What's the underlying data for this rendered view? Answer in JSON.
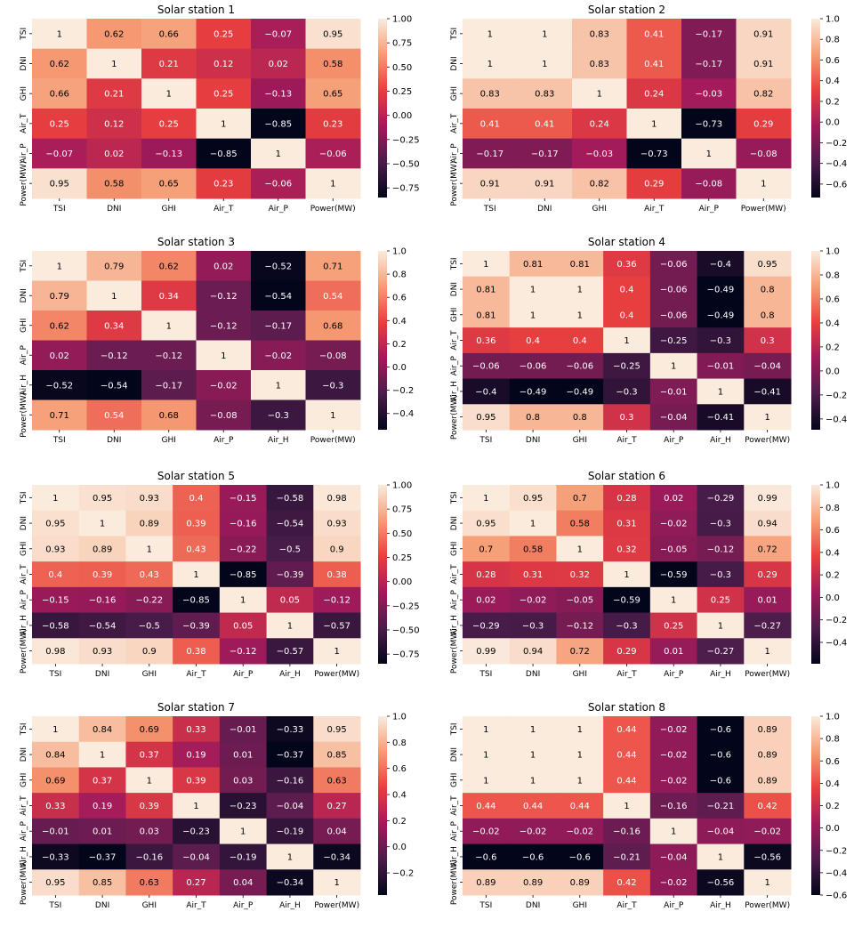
{
  "figure": {
    "colormap": "rocket",
    "colormap_stops": [
      "#03051a",
      "#4c1d4b",
      "#a11a5b",
      "#e83f3f",
      "#f69c73",
      "#faebdd"
    ]
  },
  "chart_data": [
    {
      "type": "heatmap",
      "title": "Solar station 1",
      "labels": [
        "TSI",
        "DNI",
        "GHI",
        "Air_T",
        "Air_P",
        "Power(MW)"
      ],
      "values": [
        [
          1,
          0.62,
          0.66,
          0.25,
          -0.07,
          0.95
        ],
        [
          0.62,
          1,
          0.21,
          0.12,
          0.02,
          0.58
        ],
        [
          0.66,
          0.21,
          1,
          0.25,
          -0.13,
          0.65
        ],
        [
          0.25,
          0.12,
          0.25,
          1,
          -0.85,
          0.23
        ],
        [
          -0.07,
          0.02,
          -0.13,
          -0.85,
          1,
          -0.06
        ],
        [
          0.95,
          0.58,
          0.65,
          0.23,
          -0.06,
          1
        ]
      ],
      "vmin": -0.85,
      "vmax": 1,
      "colorbar_ticks": [
        "1.00",
        "0.75",
        "0.50",
        "0.25",
        "0.00",
        "−0.25",
        "−0.50",
        "−0.75"
      ]
    },
    {
      "type": "heatmap",
      "title": "Solar station 2",
      "labels": [
        "TSI",
        "DNI",
        "GHI",
        "Air_T",
        "Air_P",
        "Power(MW)"
      ],
      "values": [
        [
          1,
          1,
          0.83,
          0.41,
          -0.17,
          0.91
        ],
        [
          1,
          1,
          0.83,
          0.41,
          -0.17,
          0.91
        ],
        [
          0.83,
          0.83,
          1,
          0.24,
          -0.03,
          0.82
        ],
        [
          0.41,
          0.41,
          0.24,
          1,
          -0.73,
          0.29
        ],
        [
          -0.17,
          -0.17,
          -0.03,
          -0.73,
          1,
          -0.08
        ],
        [
          0.91,
          0.91,
          0.82,
          0.29,
          -0.08,
          1
        ]
      ],
      "vmin": -0.73,
      "vmax": 1,
      "colorbar_ticks": [
        "1.0",
        "0.8",
        "0.6",
        "0.4",
        "0.2",
        "0.0",
        "−0.2",
        "−0.4",
        "−0.6"
      ]
    },
    {
      "type": "heatmap",
      "title": "Solar station 3",
      "labels": [
        "TSI",
        "DNI",
        "GHI",
        "Air_P",
        "Air_H",
        "Power(MW)"
      ],
      "values": [
        [
          1,
          0.79,
          0.62,
          0.02,
          -0.52,
          0.71
        ],
        [
          0.79,
          1,
          0.34,
          -0.12,
          -0.54,
          0.54
        ],
        [
          0.62,
          0.34,
          1,
          -0.12,
          -0.17,
          0.68
        ],
        [
          0.02,
          -0.12,
          -0.12,
          1,
          -0.02,
          -0.08
        ],
        [
          -0.52,
          -0.54,
          -0.17,
          -0.02,
          1,
          -0.3
        ],
        [
          0.71,
          0.54,
          0.68,
          -0.08,
          -0.3,
          1
        ]
      ],
      "vmin": -0.54,
      "vmax": 1,
      "colorbar_ticks": [
        "1.0",
        "0.8",
        "0.6",
        "0.4",
        "0.2",
        "0.0",
        "−0.2",
        "−0.4"
      ]
    },
    {
      "type": "heatmap",
      "title": "Solar station 4",
      "labels": [
        "TSI",
        "DNI",
        "GHI",
        "Air_T",
        "Air_P",
        "Air_H",
        "Power(MW)"
      ],
      "values": [
        [
          1,
          0.81,
          0.81,
          0.36,
          -0.06,
          -0.4,
          0.95
        ],
        [
          0.81,
          1,
          1,
          0.4,
          -0.06,
          -0.49,
          0.8
        ],
        [
          0.81,
          1,
          1,
          0.4,
          -0.06,
          -0.49,
          0.8
        ],
        [
          0.36,
          0.4,
          0.4,
          1,
          -0.25,
          -0.3,
          0.3
        ],
        [
          -0.06,
          -0.06,
          -0.06,
          -0.25,
          1,
          -0.01,
          -0.04
        ],
        [
          -0.4,
          -0.49,
          -0.49,
          -0.3,
          -0.01,
          1,
          -0.41
        ],
        [
          0.95,
          0.8,
          0.8,
          0.3,
          -0.04,
          -0.41,
          1
        ]
      ],
      "vmin": -0.49,
      "vmax": 1,
      "colorbar_ticks": [
        "1.0",
        "0.8",
        "0.6",
        "0.4",
        "0.2",
        "0.0",
        "−0.2",
        "−0.4"
      ]
    },
    {
      "type": "heatmap",
      "title": "Solar station 5",
      "labels": [
        "TSI",
        "DNI",
        "GHI",
        "Air_T",
        "Air_P",
        "Air_H",
        "Power(MW)"
      ],
      "values": [
        [
          1,
          0.95,
          0.93,
          0.4,
          -0.15,
          -0.58,
          0.98
        ],
        [
          0.95,
          1,
          0.89,
          0.39,
          -0.16,
          -0.54,
          0.93
        ],
        [
          0.93,
          0.89,
          1,
          0.43,
          -0.22,
          -0.5,
          0.9
        ],
        [
          0.4,
          0.39,
          0.43,
          1,
          -0.85,
          -0.39,
          0.38
        ],
        [
          -0.15,
          -0.16,
          -0.22,
          -0.85,
          1,
          0.05,
          -0.12
        ],
        [
          -0.58,
          -0.54,
          -0.5,
          -0.39,
          0.05,
          1,
          -0.57
        ],
        [
          0.98,
          0.93,
          0.9,
          0.38,
          -0.12,
          -0.57,
          1
        ]
      ],
      "vmin": -0.85,
      "vmax": 1,
      "colorbar_ticks": [
        "1.00",
        "0.75",
        "0.50",
        "0.25",
        "0.00",
        "−0.25",
        "−0.50",
        "−0.75"
      ]
    },
    {
      "type": "heatmap",
      "title": "Solar station 6",
      "labels": [
        "TSI",
        "DNI",
        "GHI",
        "Air_T",
        "Air_P",
        "Air_H",
        "Power(MW)"
      ],
      "values": [
        [
          1,
          0.95,
          0.7,
          0.28,
          0.02,
          -0.29,
          0.99
        ],
        [
          0.95,
          1,
          0.58,
          0.31,
          -0.02,
          -0.3,
          0.94
        ],
        [
          0.7,
          0.58,
          1,
          0.32,
          -0.05,
          -0.12,
          0.72
        ],
        [
          0.28,
          0.31,
          0.32,
          1,
          -0.59,
          -0.3,
          0.29
        ],
        [
          0.02,
          -0.02,
          -0.05,
          -0.59,
          1,
          0.25,
          0.01
        ],
        [
          -0.29,
          -0.3,
          -0.12,
          -0.3,
          0.25,
          1,
          -0.27
        ],
        [
          0.99,
          0.94,
          0.72,
          0.29,
          0.01,
          -0.27,
          1
        ]
      ],
      "vmin": -0.59,
      "vmax": 1,
      "colorbar_ticks": [
        "1.0",
        "0.8",
        "0.6",
        "0.4",
        "0.2",
        "0.0",
        "−0.2",
        "−0.4"
      ]
    },
    {
      "type": "heatmap",
      "title": "Solar station 7",
      "labels": [
        "TSI",
        "DNI",
        "GHI",
        "Air_T",
        "Air_P",
        "Air_H",
        "Power(MW)"
      ],
      "values": [
        [
          1,
          0.84,
          0.69,
          0.33,
          -0.01,
          -0.33,
          0.95
        ],
        [
          0.84,
          1,
          0.37,
          0.19,
          0.01,
          -0.37,
          0.85
        ],
        [
          0.69,
          0.37,
          1,
          0.39,
          0.03,
          -0.16,
          0.63
        ],
        [
          0.33,
          0.19,
          0.39,
          1,
          -0.23,
          -0.04,
          0.27
        ],
        [
          -0.01,
          0.01,
          0.03,
          -0.23,
          1,
          -0.19,
          0.04
        ],
        [
          -0.33,
          -0.37,
          -0.16,
          -0.04,
          -0.19,
          1,
          -0.34
        ],
        [
          0.95,
          0.85,
          0.63,
          0.27,
          0.04,
          -0.34,
          1
        ]
      ],
      "vmin": -0.37,
      "vmax": 1,
      "colorbar_ticks": [
        "1.0",
        "0.8",
        "0.6",
        "0.4",
        "0.2",
        "0.0",
        "−0.2"
      ]
    },
    {
      "type": "heatmap",
      "title": "Solar station 8",
      "labels": [
        "TSI",
        "DNI",
        "GHI",
        "Air_T",
        "Air_P",
        "Air_H",
        "Power(MW)"
      ],
      "values": [
        [
          1,
          1,
          1,
          0.44,
          -0.02,
          -0.6,
          0.89
        ],
        [
          1,
          1,
          1,
          0.44,
          -0.02,
          -0.6,
          0.89
        ],
        [
          1,
          1,
          1,
          0.44,
          -0.02,
          -0.6,
          0.89
        ],
        [
          0.44,
          0.44,
          0.44,
          1,
          -0.16,
          -0.21,
          0.42
        ],
        [
          -0.02,
          -0.02,
          -0.02,
          -0.16,
          1,
          -0.04,
          -0.02
        ],
        [
          -0.6,
          -0.6,
          -0.6,
          -0.21,
          -0.04,
          1,
          -0.56
        ],
        [
          0.89,
          0.89,
          0.89,
          0.42,
          -0.02,
          -0.56,
          1
        ]
      ],
      "vmin": -0.6,
      "vmax": 1,
      "colorbar_ticks": [
        "1.0",
        "0.8",
        "0.6",
        "0.4",
        "0.2",
        "0.0",
        "−0.2",
        "−0.4",
        "−0.6"
      ]
    }
  ]
}
